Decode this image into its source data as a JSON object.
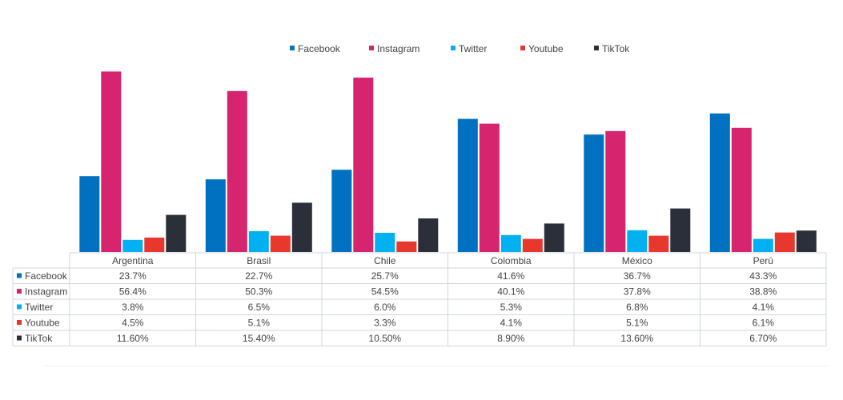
{
  "chart_data": {
    "type": "bar",
    "title": "",
    "xlabel": "",
    "ylabel": "",
    "ylim": [
      0,
      60
    ],
    "legend_position": "top",
    "categories": [
      "Argentina",
      "Brasil",
      "Chile",
      "Colombia",
      "México",
      "Perú"
    ],
    "series": [
      {
        "name": "Facebook",
        "color": "#0070c0",
        "values": [
          23.7,
          22.7,
          25.7,
          41.6,
          36.7,
          43.3
        ],
        "labels": [
          "23.7%",
          "22.7%",
          "25.7%",
          "41.6%",
          "36.7%",
          "43.3%"
        ]
      },
      {
        "name": "Instagram",
        "color": "#d6246e",
        "values": [
          56.4,
          50.3,
          54.5,
          40.1,
          37.8,
          38.8
        ],
        "labels": [
          "56.4%",
          "50.3%",
          "54.5%",
          "40.1%",
          "37.8%",
          "38.8%"
        ]
      },
      {
        "name": "Twitter",
        "color": "#00b0f0",
        "values": [
          3.8,
          6.5,
          6.0,
          5.3,
          6.8,
          4.1
        ],
        "labels": [
          "3.8%",
          "6.5%",
          "6.0%",
          "5.3%",
          "6.8%",
          "4.1%"
        ]
      },
      {
        "name": "Youtube",
        "color": "#e8382e",
        "values": [
          4.5,
          5.1,
          3.3,
          4.1,
          5.1,
          6.1
        ],
        "labels": [
          "4.5%",
          "5.1%",
          "3.3%",
          "4.1%",
          "5.1%",
          "6.1%"
        ]
      },
      {
        "name": "TikTok",
        "color": "#2b2f3a",
        "values": [
          11.6,
          15.4,
          10.5,
          8.9,
          13.6,
          6.7
        ],
        "labels": [
          "11.60%",
          "15.40%",
          "10.50%",
          "8.90%",
          "13.60%",
          "6.70%"
        ]
      }
    ],
    "grid": false,
    "data_table": true
  }
}
